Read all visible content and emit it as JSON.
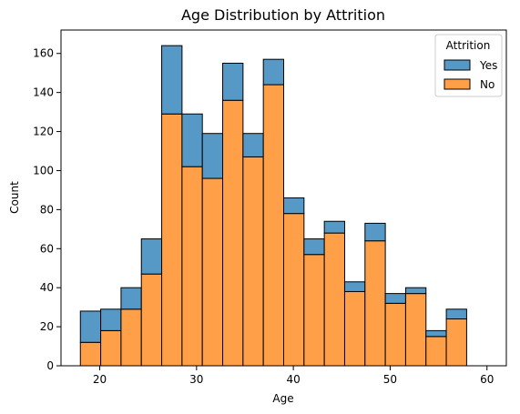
{
  "chart_data": {
    "type": "bar",
    "title": "Age Distribution by Attrition",
    "xlabel": "Age",
    "ylabel": "Count",
    "xlim": [
      16,
      62
    ],
    "ylim": [
      0,
      172
    ],
    "xticks": [
      20,
      30,
      40,
      50,
      60
    ],
    "yticks": [
      0,
      20,
      40,
      60,
      80,
      100,
      120,
      140,
      160
    ],
    "bins": [
      [
        18.0,
        20.1
      ],
      [
        20.1,
        22.2
      ],
      [
        22.2,
        24.3
      ],
      [
        24.3,
        26.4
      ],
      [
        26.4,
        28.5
      ],
      [
        28.5,
        30.6
      ],
      [
        30.6,
        32.7
      ],
      [
        32.7,
        34.8
      ],
      [
        34.8,
        36.9
      ],
      [
        36.9,
        39.0
      ],
      [
        39.0,
        41.1
      ],
      [
        41.1,
        43.2
      ],
      [
        43.2,
        45.3
      ],
      [
        45.3,
        47.4
      ],
      [
        47.4,
        49.5
      ],
      [
        49.5,
        51.6
      ],
      [
        51.6,
        53.7
      ],
      [
        53.7,
        55.8
      ],
      [
        55.8,
        57.9
      ],
      [
        57.9,
        60.0
      ]
    ],
    "series": [
      {
        "name": "No",
        "color": "#ff9f48",
        "values": [
          12,
          18,
          29,
          47,
          129,
          102,
          96,
          136,
          107,
          144,
          78,
          57,
          68,
          38,
          64,
          32,
          37,
          15,
          24,
          0
        ]
      },
      {
        "name": "Yes",
        "color": "#5698c6",
        "values": [
          16,
          11,
          11,
          18,
          35,
          27,
          23,
          19,
          12,
          13,
          8,
          8,
          6,
          5,
          9,
          5,
          3,
          3,
          5,
          0
        ]
      }
    ],
    "stacked": true,
    "legend": {
      "title": "Attrition",
      "entries": [
        "Yes",
        "No"
      ],
      "placement": "top-right"
    },
    "grid": false
  }
}
